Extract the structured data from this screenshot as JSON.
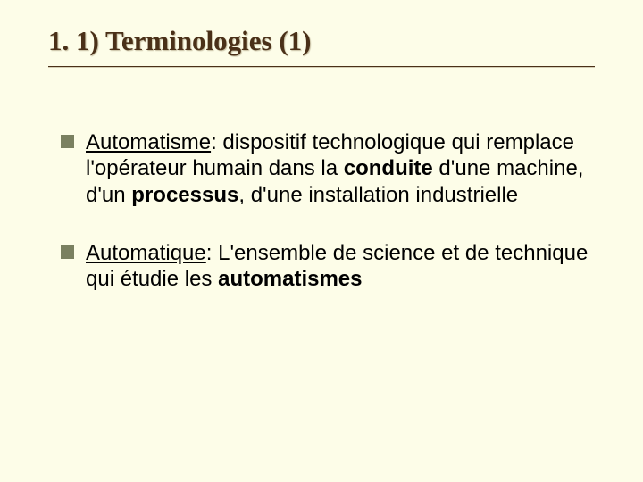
{
  "background_color": "#fdfde8",
  "title": {
    "text": "1. 1)   Terminologies (1)",
    "color": "#4a3018",
    "font_family": "Times New Roman",
    "font_size_pt": 23,
    "font_weight": "bold",
    "underline_color": "#4a3018"
  },
  "bullets": [
    {
      "marker_color": "#7a8060",
      "term": "Automatisme",
      "segments": [
        {
          "text": ": dispositif technologique qui remplace l'opérateur humain dans la ",
          "bold": false
        },
        {
          "text": "conduite",
          "bold": true
        },
        {
          "text": " d'une machine, d'un ",
          "bold": false
        },
        {
          "text": "processus",
          "bold": true
        },
        {
          "text": ", d'une installation industrielle",
          "bold": false
        }
      ]
    },
    {
      "marker_color": "#7a8060",
      "term": "Automatique",
      "segments": [
        {
          "text": ": L'ensemble de science et de technique qui étudie les ",
          "bold": false
        },
        {
          "text": "automatismes",
          "bold": true
        }
      ]
    }
  ],
  "body_font": {
    "family": "Arial",
    "size_pt": 18,
    "color": "#000000",
    "line_height": 1.22
  }
}
